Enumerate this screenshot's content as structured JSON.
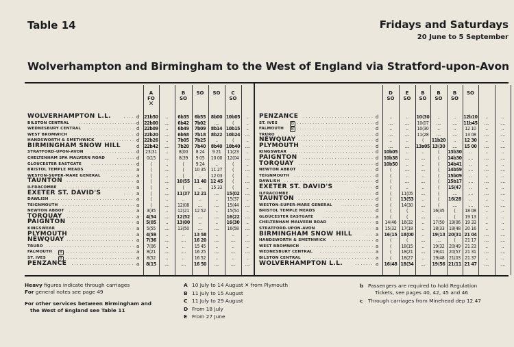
{
  "header": {
    "table_number": "Table 14",
    "days": "Fridays and Saturdays",
    "date_range": "20 June to 5 September",
    "route_title": "Wolverhampton and Birmingham to the West of England via Stratford-upon-Avon"
  },
  "left": {
    "columns": [
      {
        "note": "A",
        "days": "FO",
        "symbol": "✕"
      },
      {
        "note": "",
        "days": "",
        "symbol": ""
      },
      {
        "note": "B",
        "days": "SO",
        "symbol": ""
      },
      {
        "note": "",
        "days": "SO",
        "symbol": ""
      },
      {
        "note": "",
        "days": "SO",
        "symbol": ""
      },
      {
        "note": "C",
        "days": "SO",
        "symbol": ""
      },
      {
        "note": "",
        "days": "",
        "symbol": ""
      }
    ],
    "rows": [
      {
        "station": "WOLVERHAMPTON L.L.",
        "heavy": true,
        "da": "d",
        "times": [
          "21b50",
          "..",
          "6b35",
          "6b55",
          "8b00",
          "10b05",
          ".."
        ]
      },
      {
        "station": "BILSTON CENTRAL",
        "heavy": false,
        "da": "d",
        "times": [
          "22b00",
          "....",
          "6b42",
          "7b02",
          "....",
          "⟨",
          ".."
        ]
      },
      {
        "station": "WEDNESBURY CENTRAL",
        "heavy": false,
        "da": "d",
        "times": [
          "22b09",
          "..",
          "6b49",
          "7b09",
          "8b14",
          "10b15",
          ".."
        ]
      },
      {
        "station": "WEST BROMWICH",
        "heavy": false,
        "da": "d",
        "times": [
          "22b20",
          "....",
          "6b58",
          "7b18",
          "8b22",
          "10b24",
          "...."
        ]
      },
      {
        "station": "HANDSWORTH & SMETHWICK",
        "heavy": false,
        "da": "d",
        "times": [
          "22b26",
          "..",
          "7b05",
          "7b25",
          "..",
          "⟨",
          ".."
        ]
      },
      {
        "station": "BIRMINGHAM SNOW HILL",
        "heavy": true,
        "da": "d",
        "times": [
          "22b42",
          "....",
          "7b20",
          "7b40",
          "8b40",
          "10b40",
          "...."
        ]
      },
      {
        "station": "STRATFORD-UPON-AVON",
        "heavy": false,
        "da": "d",
        "times": [
          "23⟨31",
          "..",
          "8⟨00",
          "8 24",
          "9 21",
          "11⟨23",
          ".."
        ]
      },
      {
        "station": "CHELTENHAM SPA MALVERN ROAD",
        "heavy": false,
        "da": "d",
        "times": [
          "0⟨15",
          "....",
          "8⟨39",
          "9 05",
          "10 00",
          "12⟨04",
          "...."
        ]
      },
      {
        "station": "GLOUCESTER EASTGATE",
        "heavy": false,
        "da": "d",
        "times": [
          "⟨",
          "..",
          "⟨",
          "9 24",
          "..",
          "⟨",
          ".."
        ]
      },
      {
        "station": "BRISTOL TEMPLE MEADS",
        "heavy": false,
        "da": "a",
        "times": [
          "⟨",
          "....",
          "⟨",
          "10 35",
          "11 27",
          "⟨",
          "...."
        ]
      },
      {
        "station": "WESTON-SUPER-MARE GENERAL",
        "heavy": false,
        "da": "a",
        "times": [
          "⟨",
          "..",
          "⟨",
          "..",
          "12 03",
          "⟨",
          ".."
        ]
      },
      {
        "station": "TAUNTON",
        "heavy": true,
        "da": "a",
        "times": [
          "⟨",
          "....",
          "10⟨55",
          "11 40",
          "12 45",
          "⟨",
          "...."
        ]
      },
      {
        "station": "ILFRACOMBE",
        "heavy": false,
        "da": "a",
        "times": [
          "⟨",
          "..",
          "⟨",
          "..",
          "15 33",
          "⟨",
          ".."
        ]
      },
      {
        "station": "EXETER ST. DAVID'S",
        "heavy": true,
        "da": "a",
        "times": [
          "⟨",
          "....",
          "11⟨37",
          "12 21",
          "....",
          "15⟨02",
          "...."
        ]
      },
      {
        "station": "DAWLISH",
        "heavy": false,
        "da": "a",
        "times": [
          "⟨",
          "..",
          "..",
          "..",
          "..",
          "15⟨37",
          ".."
        ]
      },
      {
        "station": "TEIGNMOUTH",
        "heavy": false,
        "da": "a",
        "times": [
          "⟨",
          "....",
          "12⟨08",
          "....",
          "....",
          "15⟨44",
          "...."
        ]
      },
      {
        "station": "NEWTON ABBOT",
        "heavy": false,
        "da": "a",
        "times": [
          "3⟨35",
          "..",
          "12⟨21",
          "12 52",
          "..",
          "15⟨54",
          ".."
        ]
      },
      {
        "station": "TORQUAY",
        "heavy": true,
        "da": "a",
        "times": [
          "4⟨54",
          "....",
          "12⟨52",
          "....",
          "....",
          "16⟨22",
          "...."
        ]
      },
      {
        "station": "PAIGNTON",
        "heavy": true,
        "da": "a",
        "times": [
          "5⟨05",
          "..",
          "13⟨00",
          "..",
          "..",
          "16⟨30",
          ".."
        ]
      },
      {
        "station": "KINGSWEAR",
        "heavy": false,
        "da": "a",
        "times": [
          "5⟨55",
          "....",
          "13⟨50",
          "....",
          "....",
          "16⟨58",
          "...."
        ]
      },
      {
        "station": "PLYMOUTH",
        "heavy": true,
        "da": "a",
        "times": [
          "4⟨59",
          "..",
          "..",
          "13 58",
          "..",
          "..",
          ".."
        ]
      },
      {
        "station": "NEWQUAY",
        "heavy": true,
        "da": "a",
        "times": [
          "7⟨36",
          "....",
          "....",
          "16 20",
          "....",
          "....",
          "...."
        ]
      },
      {
        "station": "TRURO",
        "heavy": false,
        "da": "a",
        "times": [
          "7⟨06",
          "..",
          "..",
          "15 45",
          "..",
          "..",
          ".."
        ]
      },
      {
        "station": "FALMOUTH",
        "heavy": false,
        "da": "a",
        "mark": "B",
        "times": [
          "8⟨21",
          "....",
          "....",
          "16 25",
          "....",
          "....",
          "...."
        ]
      },
      {
        "station": "ST. IVES",
        "heavy": false,
        "da": "a",
        "mark": "B",
        "times": [
          "8⟨52",
          "..",
          "..",
          "16 52",
          "..",
          "..",
          ".."
        ]
      },
      {
        "station": "PENZANCE",
        "heavy": true,
        "da": "a",
        "times": [
          "8⟨15",
          "....",
          "....",
          "16 50",
          "....",
          "....",
          "...."
        ]
      }
    ]
  },
  "right": {
    "columns": [
      {
        "note": "D",
        "days": "SO"
      },
      {
        "note": "E",
        "days": "SO"
      },
      {
        "note": "B",
        "days": "SO"
      },
      {
        "note": "B",
        "days": "SO"
      },
      {
        "note": "B",
        "days": "SO"
      },
      {
        "note": "",
        "days": "SO"
      },
      {
        "note": "",
        "days": ""
      },
      {
        "note": "",
        "days": ""
      }
    ],
    "rows": [
      {
        "station": "PENZANCE",
        "heavy": true,
        "da": "d",
        "times": [
          "..",
          "..",
          "10⟨30",
          "..",
          "..",
          "12b10",
          "..",
          ".."
        ]
      },
      {
        "station": "ST. IVES",
        "heavy": false,
        "da": "d",
        "mark": "B",
        "times": [
          "....",
          "....",
          "10⟨07",
          "....",
          "....",
          "11b45",
          "....",
          "...."
        ]
      },
      {
        "station": "FALMOUTH",
        "heavy": false,
        "da": "d",
        "mark": "B",
        "times": [
          "..",
          "..",
          "10⟨30",
          "..",
          "..",
          "12 10",
          "..",
          ".."
        ]
      },
      {
        "station": "TRURO",
        "heavy": false,
        "da": "d",
        "times": [
          "....",
          "....",
          "11⟨28",
          "....",
          "....",
          "13 08",
          "....",
          "...."
        ]
      },
      {
        "station": "NEWQUAY",
        "heavy": true,
        "da": "d",
        "times": [
          "..",
          "..",
          "⟨",
          "11b20",
          "..",
          "12 30",
          "..",
          ".."
        ]
      },
      {
        "station": "PLYMOUTH",
        "heavy": true,
        "da": "d",
        "times": [
          "....",
          "....",
          "13a05",
          "13⟨30",
          "....",
          "15 00",
          "....",
          "...."
        ]
      },
      {
        "station": "KINGSWEAR",
        "heavy": false,
        "da": "d",
        "times": [
          "10b05",
          "..",
          "..",
          "⟨",
          "13b30",
          "..",
          "..",
          ".."
        ]
      },
      {
        "station": "PAIGNTON",
        "heavy": true,
        "da": "d",
        "times": [
          "10b38",
          "....",
          "....",
          "⟨",
          "14b30",
          "....",
          "....",
          "...."
        ]
      },
      {
        "station": "TORQUAY",
        "heavy": true,
        "da": "d",
        "times": [
          "10b50",
          "..",
          "..",
          "⟨",
          "14b41",
          "..",
          "..",
          ".."
        ]
      },
      {
        "station": "NEWTON ABBOT",
        "heavy": false,
        "da": "d",
        "times": [
          "⟨",
          "....",
          "....",
          "⟨",
          "14b59",
          "....",
          "....",
          "...."
        ]
      },
      {
        "station": "TEIGNMOUTH",
        "heavy": false,
        "da": "d",
        "times": [
          "⟨",
          "..",
          "..",
          "⟨",
          "15b09",
          "..",
          "..",
          ".."
        ]
      },
      {
        "station": "DAWLISH",
        "heavy": false,
        "da": "d",
        "times": [
          "⟨",
          "....",
          "....",
          "⟨",
          "15b17",
          "....",
          "....",
          "...."
        ]
      },
      {
        "station": "EXETER ST. DAVID'S",
        "heavy": true,
        "da": "d",
        "times": [
          "⟨",
          "..",
          "..",
          "⟨",
          "15⟨47",
          "..",
          "..",
          ".."
        ]
      },
      {
        "station": "ILFRACOMBE",
        "heavy": false,
        "da": "d",
        "times": [
          "⟨",
          "11⟨05",
          "....",
          "⟨",
          "....",
          "....",
          "....",
          "...."
        ]
      },
      {
        "station": "TAUNTON",
        "heavy": true,
        "da": "d",
        "times": [
          "⟨",
          "13⟨53",
          "..",
          "⟨",
          "16⟨28",
          "..",
          "..",
          ".."
        ]
      },
      {
        "station": "WESTON-SUPER-MARE GENERAL",
        "heavy": false,
        "da": "d",
        "times": [
          "⟨",
          "14⟨30",
          "....",
          "⟨",
          "....",
          "....",
          "....",
          "...."
        ]
      },
      {
        "station": "BRISTOL TEMPLE MEADS",
        "heavy": false,
        "da": "d",
        "times": [
          "⟨",
          "⟨",
          "..",
          "16⟨35",
          "⟨",
          "18 08",
          "..",
          ".."
        ]
      },
      {
        "station": "GLOUCESTER EASTGATE",
        "heavy": false,
        "da": "a",
        "times": [
          "⟨",
          "⟨",
          "....",
          "....",
          "⟨",
          "19 13",
          "..",
          ".."
        ]
      },
      {
        "station": "CHELTENHAM MALVERN ROAD",
        "heavy": false,
        "da": "a",
        "times": [
          "14⟨46",
          "16⟨32",
          "..",
          "17⟨50",
          "19⟨06",
          "19 33",
          "..",
          ".."
        ]
      },
      {
        "station": "STRATFORD-UPON-AVON",
        "heavy": false,
        "da": "a",
        "times": [
          "15⟨32",
          "17⟨18",
          "..",
          "18⟨33",
          "19⟨48",
          "20 16",
          "..",
          ".."
        ]
      },
      {
        "station": "BIRMINGHAM SNOW HILL",
        "heavy": true,
        "da": "a",
        "times": [
          "16⟨15",
          "18⟨00",
          "..",
          "19⟨13",
          "20⟨31",
          "21 04",
          "....",
          "...."
        ]
      },
      {
        "station": "HANDSWORTH & SMETHWICK",
        "heavy": false,
        "da": "a",
        "times": [
          "⟨",
          "⟨",
          "....",
          "....",
          "⟨",
          "21 17",
          "....",
          "...."
        ]
      },
      {
        "station": "WEST BROMWICH",
        "heavy": false,
        "da": "a",
        "times": [
          "⟨",
          "18⟨15",
          "..",
          "19⟨32",
          "20⟨49",
          "21 23",
          "..",
          ".."
        ]
      },
      {
        "station": "WEDNESBURY CENTRAL",
        "heavy": false,
        "da": "a",
        "times": [
          "⟨",
          "18⟨21",
          "....",
          "19⟨41",
          "20⟨57",
          "21 31",
          "....",
          "...."
        ]
      },
      {
        "station": "BILSTON CENTRAL",
        "heavy": false,
        "da": "a",
        "times": [
          "⟨",
          "18⟨27",
          "..",
          "19⟨48",
          "21⟨03",
          "21 37",
          "..",
          ".."
        ]
      },
      {
        "station": "WOLVERHAMPTON L.L.",
        "heavy": true,
        "da": "a",
        "times": [
          "16⟨48",
          "18⟨34",
          "....",
          "19⟨56",
          "21⟨11",
          "21 47",
          "....",
          "...."
        ]
      }
    ]
  },
  "notes": {
    "general": [
      {
        "bold": "Heavy",
        "text": " figures indicate through carriages"
      },
      {
        "bold": "For",
        "text": " general notes see page 49"
      }
    ],
    "other_services": [
      "For other services between Birmingham and",
      "the West of England see Table 11"
    ],
    "letters": [
      {
        "key": "A",
        "text": "10 July to 14 August ✕ from Plymouth"
      },
      {
        "key": "B",
        "text": "11 July to 15 August"
      },
      {
        "key": "C",
        "text": "11 July to 29 August"
      },
      {
        "key": "D",
        "text": "From 18 July"
      },
      {
        "key": "E",
        "text": "From 27 June"
      }
    ],
    "symbols": [
      {
        "key": "b",
        "text": "Passengers are required to hold Regulation",
        "text2": "Tickets, see pages 40, 42, 45 and 46"
      },
      {
        "key": "c",
        "text": "Through carriages from Minehead dep 12.47"
      }
    ]
  }
}
